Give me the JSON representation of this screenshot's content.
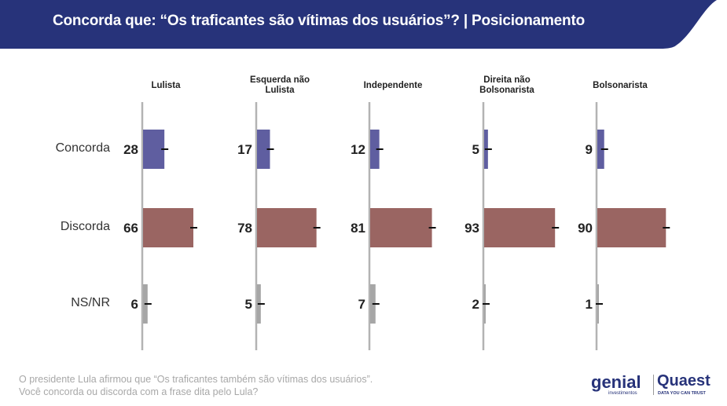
{
  "header": {
    "title": "Concorda que: “Os traficantes são vítimas dos usuários”? | Posicionamento",
    "color": "#27337a"
  },
  "chart_data": {
    "type": "bar",
    "orientation": "horizontal",
    "groups": [
      "Lulista",
      "Esquerda não Lulista",
      "Independente",
      "Direita não Bolsonarista",
      "Bolsonarista"
    ],
    "categories": [
      "Concorda",
      "Discorda",
      "NS/NR"
    ],
    "colors": {
      "Concorda": "#5f5ea0",
      "Discorda": "#9a6562",
      "NS/NR": "#a6a6a6"
    },
    "values": {
      "Concorda": [
        28,
        17,
        12,
        5,
        9
      ],
      "Discorda": [
        66,
        78,
        81,
        93,
        90
      ],
      "NS/NR": [
        6,
        5,
        7,
        2,
        1
      ]
    },
    "error_bars": true,
    "xlim": [
      0,
      100
    ]
  },
  "footer": {
    "note_line1": "O presidente Lula afirmou que “Os traficantes também são vítimas dos usuários”.",
    "note_line2": "Você concorda ou discorda com a frase dita pelo Lula?",
    "logo_genial": "genial",
    "logo_genial_sub": "investimentos",
    "logo_quaest": "Quaest",
    "logo_quaest_sub": "DATA YOU CAN TRUST"
  }
}
